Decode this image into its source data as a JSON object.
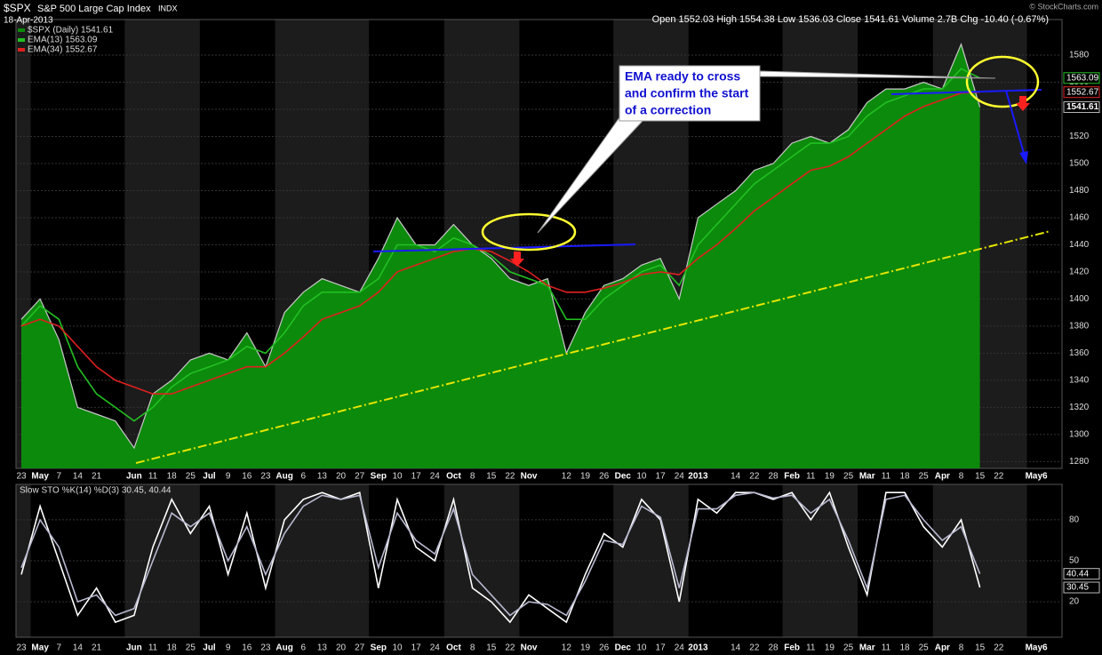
{
  "header": {
    "symbol": "$SPX",
    "name": "S&P 500 Large Cap Index",
    "exchange": "INDX",
    "date": "18-Apr-2013",
    "quote": "Open 1552.03  High 1554.38  Low 1536.03  Close 1541.61  Volume 2.7B  Chg -10.40 (-0.67%)",
    "credit": "© StockCharts.com"
  },
  "chart_data": [
    {
      "type": "area",
      "annotation": [
        "EMA ready to cross",
        "and confirm the start",
        "of a correction"
      ],
      "categories": [
        "23",
        "May",
        "7",
        "14",
        "21",
        null,
        "Jun",
        "11",
        "18",
        "25",
        "Jul",
        "9",
        "16",
        "23",
        "Aug",
        "6",
        "13",
        "20",
        "27",
        "Sep",
        "10",
        "17",
        "24",
        "Oct",
        "8",
        "15",
        "22",
        "Nov",
        null,
        "12",
        "19",
        "26",
        "Dec",
        "10",
        "17",
        "24",
        "2013",
        null,
        "14",
        "22",
        "28",
        "Feb",
        "11",
        "19",
        "25",
        "Mar",
        "11",
        "18",
        "25",
        "Apr",
        "8",
        "15",
        "22",
        null,
        "May6"
      ],
      "ylim": [
        1275,
        1601
      ],
      "yticks": [
        1280,
        1300,
        1320,
        1340,
        1360,
        1380,
        1400,
        1420,
        1440,
        1460,
        1480,
        1500,
        1520,
        1540,
        1560,
        1580
      ],
      "grid": true,
      "series": [
        {
          "name": "$SPX (Daily) 1541.61",
          "color": "#0c8a0c",
          "values": [
            1385,
            1400,
            1370,
            1320,
            1315,
            1310,
            1290,
            1330,
            1340,
            1355,
            1360,
            1355,
            1375,
            1350,
            1390,
            1405,
            1415,
            1410,
            1405,
            1430,
            1460,
            1440,
            1440,
            1455,
            1440,
            1430,
            1415,
            1410,
            1415,
            1360,
            1390,
            1410,
            1415,
            1425,
            1430,
            1400,
            1460,
            1470,
            1480,
            1495,
            1500,
            1515,
            1520,
            1515,
            1525,
            1545,
            1555,
            1555,
            1560,
            1555,
            1588,
            1541.61,
            null,
            null,
            null
          ]
        },
        {
          "name": "EMA(13) 1563.09",
          "color": "#22c022",
          "values": [
            1380,
            1395,
            1385,
            1350,
            1330,
            1320,
            1310,
            1320,
            1335,
            1345,
            1350,
            1355,
            1365,
            1360,
            1375,
            1395,
            1405,
            1405,
            1405,
            1415,
            1440,
            1440,
            1435,
            1445,
            1440,
            1432,
            1420,
            1415,
            1410,
            1385,
            1385,
            1400,
            1410,
            1420,
            1425,
            1410,
            1440,
            1455,
            1470,
            1485,
            1495,
            1505,
            1515,
            1515,
            1520,
            1535,
            1545,
            1550,
            1555,
            1555,
            1570,
            1563.09,
            null,
            null,
            null
          ]
        },
        {
          "name": "EMA(34) 1552.67",
          "color": "#e02020",
          "values": [
            1380,
            1385,
            1380,
            1365,
            1350,
            1340,
            1335,
            1330,
            1330,
            1335,
            1340,
            1345,
            1350,
            1350,
            1360,
            1372,
            1385,
            1390,
            1395,
            1405,
            1420,
            1425,
            1430,
            1435,
            1437,
            1435,
            1428,
            1420,
            1410,
            1405,
            1405,
            1408,
            1412,
            1418,
            1420,
            1418,
            1430,
            1440,
            1452,
            1465,
            1475,
            1485,
            1495,
            1498,
            1505,
            1515,
            1525,
            1535,
            1542,
            1547,
            1552,
            1552.67,
            null,
            null,
            null
          ]
        }
      ]
    },
    {
      "type": "line",
      "title": "Slow STO %K(14) %D(3) 30.45, 40.44",
      "categories": [
        "23",
        "May",
        "7",
        "14",
        "21",
        null,
        "Jun",
        "11",
        "18",
        "25",
        "Jul",
        "9",
        "16",
        "23",
        "Aug",
        "6",
        "13",
        "20",
        "27",
        "Sep",
        "10",
        "17",
        "24",
        "Oct",
        "8",
        "15",
        "22",
        "Nov",
        null,
        "12",
        "19",
        "26",
        "Dec",
        "10",
        "17",
        "24",
        "2013",
        null,
        "14",
        "22",
        "28",
        "Feb",
        "11",
        "19",
        "25",
        "Mar",
        "11",
        "18",
        "25",
        "Apr",
        "8",
        "15",
        "22",
        null,
        "May6"
      ],
      "ylim": [
        -6,
        106
      ],
      "yticks": [
        20,
        50,
        80
      ],
      "grid": true,
      "series": [
        {
          "name": "%K(14)",
          "color": "#ffffff",
          "values": [
            40,
            90,
            50,
            10,
            30,
            5,
            10,
            60,
            95,
            70,
            90,
            40,
            85,
            30,
            80,
            95,
            100,
            95,
            100,
            30,
            95,
            60,
            50,
            95,
            30,
            20,
            5,
            25,
            15,
            5,
            40,
            70,
            60,
            95,
            80,
            20,
            95,
            85,
            100,
            100,
            95,
            100,
            80,
            100,
            60,
            25,
            100,
            100,
            75,
            60,
            80,
            30.45,
            null,
            null,
            null
          ]
        },
        {
          "name": "%D(3)",
          "color": "#b8b8d0",
          "values": [
            45,
            80,
            60,
            20,
            25,
            10,
            15,
            50,
            85,
            75,
            85,
            50,
            75,
            40,
            70,
            90,
            98,
            95,
            98,
            45,
            85,
            65,
            55,
            88,
            40,
            25,
            10,
            20,
            18,
            10,
            35,
            65,
            62,
            90,
            82,
            30,
            88,
            88,
            98,
            100,
            96,
            98,
            85,
            95,
            65,
            30,
            95,
            98,
            80,
            65,
            75,
            40.44,
            null,
            null,
            null
          ]
        }
      ]
    }
  ]
}
